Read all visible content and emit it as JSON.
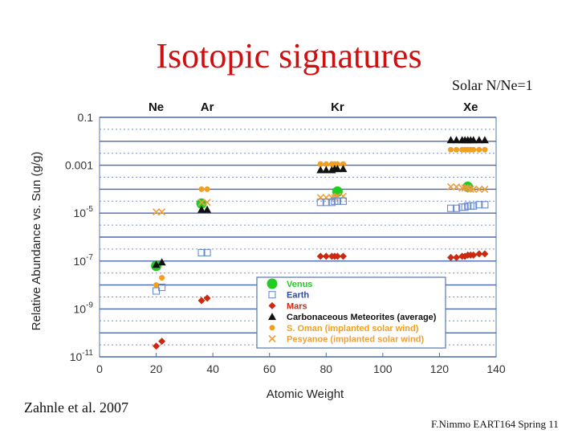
{
  "title": "Isotopic signatures",
  "note": "Solar N/Ne=1",
  "citation": "Zahnle et al. 2007",
  "footer": "F.Nimmo EART164 Spring 11",
  "chart_data": {
    "type": "scatter",
    "xlabel": "Atomic Weight",
    "ylabel": "Relative Abundance vs. Sun (g/g)",
    "xlim": [
      0,
      140
    ],
    "ylim_log10": [
      -11,
      -1
    ],
    "y_scale": "log",
    "x_ticks": [
      "0",
      "20",
      "40",
      "60",
      "80",
      "100",
      "120",
      "140"
    ],
    "y_ticks": [
      {
        "base": "0.1",
        "exp": ""
      },
      {
        "base": "0.001",
        "exp": ""
      },
      {
        "base": "10",
        "exp": "-5"
      },
      {
        "base": "10",
        "exp": "-7"
      },
      {
        "base": "10",
        "exp": "-9"
      },
      {
        "base": "10",
        "exp": "-11"
      }
    ],
    "element_labels": [
      {
        "label": "Ne",
        "x": 20
      },
      {
        "label": "Ar",
        "x": 38
      },
      {
        "label": "Kr",
        "x": 84
      },
      {
        "label": "Xe",
        "x": 131
      }
    ],
    "legend_position": "bottom-right",
    "series": [
      {
        "name": "Venus",
        "marker": "circle",
        "color": "#22cc22",
        "points": [
          [
            20,
            -7.2
          ],
          [
            36,
            -4.6
          ],
          [
            84,
            -4.1
          ],
          [
            130,
            -3.9
          ]
        ]
      },
      {
        "name": "Earth",
        "marker": "square",
        "color": "#6a8cd0",
        "points": [
          [
            20,
            -8.25
          ],
          [
            22,
            -8.1
          ],
          [
            36,
            -6.65
          ],
          [
            38,
            -6.65
          ],
          [
            78,
            -4.55
          ],
          [
            80,
            -4.55
          ],
          [
            82,
            -4.55
          ],
          [
            83,
            -4.5
          ],
          [
            84,
            -4.5
          ],
          [
            86,
            -4.5
          ],
          [
            124,
            -4.8
          ],
          [
            126,
            -4.8
          ],
          [
            128,
            -4.75
          ],
          [
            129,
            -4.75
          ],
          [
            130,
            -4.7
          ],
          [
            131,
            -4.7
          ],
          [
            132,
            -4.7
          ],
          [
            134,
            -4.65
          ],
          [
            136,
            -4.65
          ]
        ]
      },
      {
        "name": "Mars",
        "marker": "diamond",
        "color": "#cc2a10",
        "points": [
          [
            20,
            -10.55
          ],
          [
            22,
            -10.35
          ],
          [
            36,
            -8.65
          ],
          [
            38,
            -8.55
          ],
          [
            78,
            -6.8
          ],
          [
            80,
            -6.8
          ],
          [
            82,
            -6.8
          ],
          [
            83,
            -6.8
          ],
          [
            84,
            -6.8
          ],
          [
            86,
            -6.8
          ],
          [
            124,
            -6.85
          ],
          [
            126,
            -6.85
          ],
          [
            128,
            -6.8
          ],
          [
            129,
            -6.8
          ],
          [
            130,
            -6.75
          ],
          [
            131,
            -6.75
          ],
          [
            132,
            -6.75
          ],
          [
            134,
            -6.7
          ],
          [
            136,
            -6.7
          ]
        ]
      },
      {
        "name": "Carbonaceous Meteorites (average)",
        "marker": "triangle",
        "color": "#111111",
        "points": [
          [
            20,
            -7.15
          ],
          [
            22,
            -7.05
          ],
          [
            36,
            -4.85
          ],
          [
            38,
            -4.85
          ],
          [
            78,
            -3.2
          ],
          [
            80,
            -3.2
          ],
          [
            82,
            -3.2
          ],
          [
            83,
            -3.15
          ],
          [
            84,
            -3.15
          ],
          [
            86,
            -3.15
          ],
          [
            124,
            -1.95
          ],
          [
            126,
            -1.95
          ],
          [
            128,
            -1.95
          ],
          [
            129,
            -1.95
          ],
          [
            130,
            -1.95
          ],
          [
            131,
            -1.95
          ],
          [
            132,
            -1.95
          ],
          [
            134,
            -1.95
          ],
          [
            136,
            -1.95
          ]
        ]
      },
      {
        "name": "S. Oman (implanted solar wind)",
        "marker": "circle",
        "color": "#f0a020",
        "points": [
          [
            20,
            -8.0
          ],
          [
            22,
            -7.7
          ],
          [
            36,
            -4.0
          ],
          [
            38,
            -4.0
          ],
          [
            78,
            -2.95
          ],
          [
            80,
            -2.95
          ],
          [
            82,
            -2.95
          ],
          [
            83,
            -2.95
          ],
          [
            84,
            -2.95
          ],
          [
            86,
            -2.95
          ],
          [
            124,
            -2.35
          ],
          [
            126,
            -2.35
          ],
          [
            128,
            -2.35
          ],
          [
            129,
            -2.35
          ],
          [
            130,
            -2.35
          ],
          [
            131,
            -2.35
          ],
          [
            132,
            -2.35
          ],
          [
            134,
            -2.35
          ],
          [
            136,
            -2.35
          ]
        ]
      },
      {
        "name": "Pesyanoe (implanted solar wind)",
        "marker": "x",
        "color": "#e8a040",
        "points": [
          [
            20,
            -4.95
          ],
          [
            22,
            -4.95
          ],
          [
            36,
            -4.55
          ],
          [
            38,
            -4.55
          ],
          [
            78,
            -4.35
          ],
          [
            80,
            -4.35
          ],
          [
            82,
            -4.35
          ],
          [
            83,
            -4.35
          ],
          [
            84,
            -4.3
          ],
          [
            86,
            -4.3
          ],
          [
            124,
            -3.9
          ],
          [
            126,
            -3.9
          ],
          [
            128,
            -3.95
          ],
          [
            129,
            -3.95
          ],
          [
            130,
            -3.95
          ],
          [
            131,
            -4.0
          ],
          [
            132,
            -4.0
          ],
          [
            134,
            -4.0
          ],
          [
            136,
            -4.0
          ]
        ]
      }
    ]
  }
}
